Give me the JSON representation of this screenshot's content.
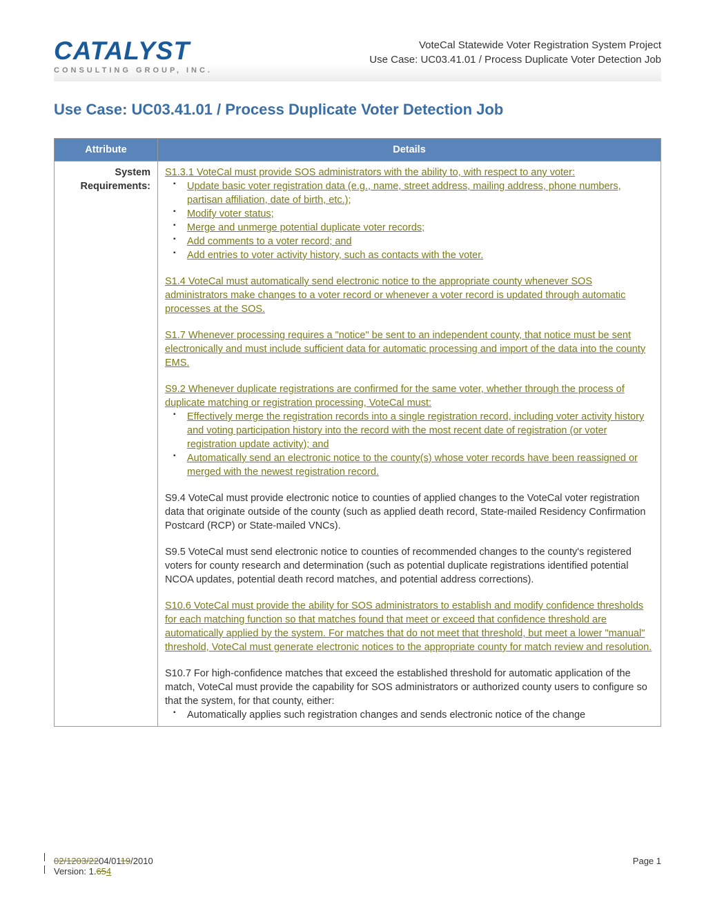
{
  "header": {
    "logo_main": "CATALYST",
    "logo_sub": "CONSULTING GROUP, INC.",
    "right1": "VoteCal Statewide Voter Registration System Project",
    "right2": "Use Case: UC03.41.01 / Process Duplicate Voter Detection Job"
  },
  "title": "Use Case: UC03.41.01 / Process Duplicate Voter Detection Job",
  "th_attribute": "Attribute",
  "th_details": "Details",
  "attr_label": "System Requirements:",
  "s131_intro": "S1.3.1 VoteCal must provide SOS administrators with the ability to, with respect to any voter:",
  "s131_b1": "Update basic voter registration data (e.g., name, street address, mailing address, phone numbers, partisan affiliation, date of birth, etc.);",
  "s131_b2": "Modify voter status;",
  "s131_b3": "Merge and unmerge potential duplicate voter records;",
  "s131_b4": "Add comments to a voter record; and",
  "s131_b5": "Add entries to voter activity history, such as contacts with the voter.",
  "s14": "S1.4 VoteCal must automatically send electronic notice to the appropriate county whenever SOS administrators make changes to a voter record or whenever a voter record is updated through automatic processes at the SOS.",
  "s17": "S1.7 Whenever processing requires a \"notice\" be sent to an independent county, that notice must be sent electronically and must include sufficient data for automatic processing and import of the data into the county EMS.",
  "s92_intro": "S9.2 Whenever duplicate registrations are confirmed for the same voter, whether through the process of duplicate matching or registration processing, VoteCal must:",
  "s92_b1": "Effectively merge the registration records into a single registration record, including voter activity history and voting participation history into the record with the most recent date of registration (or voter registration update activity); and",
  "s92_b2": "Automatically send an electronic notice to the county(s) whose voter records have been reassigned or merged with the newest registration record.",
  "s94": "S9.4 VoteCal must provide electronic notice to counties of applied changes to the VoteCal voter registration data that originate outside of the county (such as applied death record, State-mailed Residency Confirmation Postcard (RCP) or State-mailed VNCs).",
  "s95": "S9.5 VoteCal must send electronic notice to counties of recommended changes to the county's registered voters for county research and determination (such as potential duplicate registrations identified potential NCOA updates, potential death record matches, and potential address corrections).",
  "s106": "S10.6 VoteCal must provide the ability for SOS administrators to establish and modify confidence thresholds for each matching function so that matches found that meet or exceed that confidence threshold are automatically applied by the system.  For matches that do not meet that threshold, but meet a lower \"manual\" threshold, VoteCal must generate electronic notices to the appropriate county for match review and resolution.",
  "s107_intro": "S10.7 For high-confidence matches that exceed the established threshold for automatic application of the match, VoteCal must provide the capability for SOS administrators or authorized county users to configure so that the system, for that county, either:",
  "s107_b1": "Automatically applies such registration changes and sends electronic notice of the change",
  "footer": {
    "d1": "02/12",
    "d2": "03/22",
    "d3": "04/01",
    "d4": "19",
    "d5": "/2010",
    "page": "Page 1",
    "ver_pre": "Version: 1.",
    "ver_s": "65",
    "ver_u": "4"
  }
}
